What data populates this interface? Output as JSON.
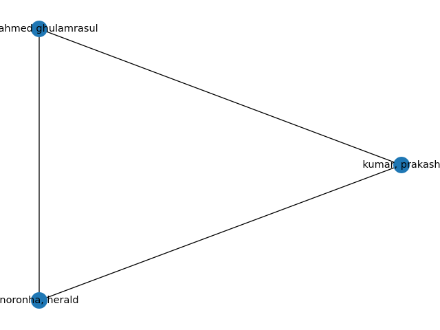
{
  "graph": {
    "node_color": "#1f77b4",
    "edge_color": "#000000",
    "nodes": [
      {
        "id": "n1",
        "label": "ali, ahmed ghulamrasul"
      },
      {
        "id": "n2",
        "label": "kumar, prakash"
      },
      {
        "id": "n3",
        "label": "noronha, herald"
      }
    ],
    "edges": [
      {
        "source": "n1",
        "target": "n2"
      },
      {
        "source": "n1",
        "target": "n3"
      },
      {
        "source": "n2",
        "target": "n3"
      }
    ]
  }
}
